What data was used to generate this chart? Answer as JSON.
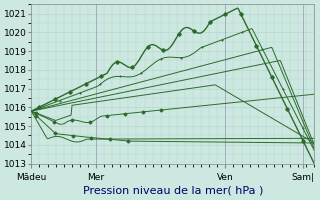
{
  "background_color": "#cce8e0",
  "grid_color": "#b8d8d0",
  "line_color": "#2d6a2d",
  "ylim": [
    1013.0,
    1021.5
  ],
  "yticks": [
    1013,
    1014,
    1015,
    1016,
    1017,
    1018,
    1019,
    1020,
    1021
  ],
  "xlabel": "Pression niveau de la mer( hPa )",
  "xlabel_fontsize": 8,
  "tick_fontsize": 6.5,
  "day_labels": [
    "Mādeu",
    "Mer",
    "Ven",
    "Sam|"
  ],
  "day_positions": [
    0,
    40,
    120,
    168
  ],
  "xlim": [
    0,
    175
  ],
  "xlabel_color": "#000066",
  "spine_color": "#888888"
}
